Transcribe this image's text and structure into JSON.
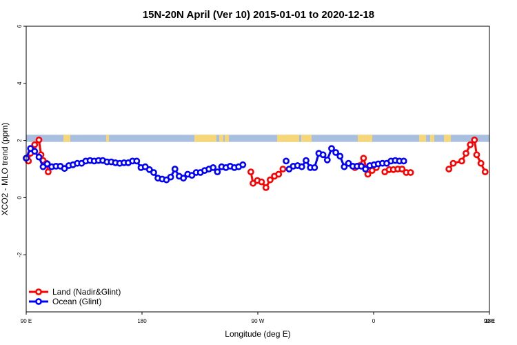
{
  "chart_data": {
    "type": "line",
    "title": "15N-20N April (Ver 10)   2015-01-01 to 2020-12-18",
    "xlabel": "Longitude (deg E)",
    "ylabel": "XCO2 - MLO trend (ppm)",
    "xlim": [
      90,
      450
    ],
    "ylim": [
      -4,
      6
    ],
    "x_ticks": [
      {
        "value": 90,
        "label": "90 E"
      },
      {
        "value": 180,
        "label": "180"
      },
      {
        "value": 270,
        "label": "90 W"
      },
      {
        "value": 360,
        "label": "0"
      },
      {
        "value": 450,
        "label": "90 E"
      },
      {
        "value": 540,
        "label": "180"
      }
    ],
    "y_ticks": [
      {
        "value": -2,
        "label": "-2"
      },
      {
        "value": 0,
        "label": "0"
      },
      {
        "value": 2,
        "label": "2"
      },
      {
        "value": 4,
        "label": "4"
      },
      {
        "value": 6,
        "label": "6"
      }
    ],
    "legend_position": "bottom-left",
    "land_band": {
      "y_range": [
        1.95,
        2.2
      ],
      "ocean_color": "#a8bfe0",
      "land_color": "#f5d77a"
    },
    "series": [
      {
        "name": "Land (Nadir&Glint)",
        "color": "#ff0000",
        "points": [
          [
            [
              90,
              1.38
            ],
            [
              91.7,
              1.28
            ],
            [
              93.3,
              1.55
            ],
            [
              96.6,
              1.85
            ],
            [
              99.9,
              2.02
            ],
            [
              101.5,
              1.5
            ],
            [
              103.1,
              1.3
            ],
            [
              105.8,
              1.2
            ],
            [
              107.1,
              0.9
            ]
          ],
          [
            [
              264.6,
              0.9
            ],
            [
              266.3,
              0.5
            ],
            [
              269.6,
              0.6
            ],
            [
              272.9,
              0.55
            ],
            [
              276.3,
              0.35
            ],
            [
              279.6,
              0.62
            ],
            [
              282.9,
              0.75
            ],
            [
              286.2,
              0.82
            ],
            [
              289.5,
              1.0
            ]
          ],
          [
            [
              345.5,
              1.05
            ],
            [
              349,
              1.12
            ],
            [
              352.2,
              1.38
            ],
            [
              355.5,
              0.82
            ],
            [
              358.8,
              0.95
            ],
            [
              362.1,
              1.05
            ]
          ],
          [
            [
              368.7,
              0.9
            ],
            [
              372.1,
              0.98
            ],
            [
              375.4,
              0.98
            ],
            [
              378.8,
              1.0
            ],
            [
              382.1,
              1.0
            ],
            [
              385.4,
              0.88
            ],
            [
              388.7,
              0.88
            ]
          ],
          [
            [
              418.5,
              1.0
            ],
            [
              421.9,
              1.2
            ],
            [
              428.5,
              1.28
            ],
            [
              431.8,
              1.55
            ],
            [
              435.1,
              1.85
            ],
            [
              438.4,
              2.02
            ],
            [
              440.1,
              1.5
            ],
            [
              443.4,
              1.2
            ],
            [
              446.7,
              0.9
            ]
          ]
        ]
      },
      {
        "name": "Ocean (Glint)",
        "color": "#0000ff",
        "points": [
          [
            [
              90,
              1.38
            ],
            [
              93.3,
              1.72
            ],
            [
              96.6,
              1.62
            ],
            [
              99.9,
              1.42
            ],
            [
              103.1,
              1.08
            ],
            [
              106.4,
              1.18
            ],
            [
              109.8,
              1.08
            ],
            [
              113.2,
              1.1
            ],
            [
              116.5,
              1.1
            ],
            [
              119.8,
              1.02
            ],
            [
              123.1,
              1.12
            ],
            [
              126.4,
              1.15
            ],
            [
              129.7,
              1.2
            ],
            [
              133,
              1.2
            ],
            [
              136.3,
              1.28
            ],
            [
              139.6,
              1.3
            ],
            [
              142.9,
              1.28
            ],
            [
              146.2,
              1.3
            ],
            [
              149.5,
              1.3
            ],
            [
              152.8,
              1.25
            ],
            [
              156.1,
              1.25
            ],
            [
              159.4,
              1.22
            ],
            [
              162.7,
              1.2
            ],
            [
              166,
              1.22
            ],
            [
              169.3,
              1.22
            ],
            [
              172.6,
              1.28
            ],
            [
              175.9,
              1.28
            ],
            [
              179.2,
              1.05
            ],
            [
              182.5,
              1.08
            ],
            [
              185.8,
              0.98
            ],
            [
              189.1,
              0.88
            ],
            [
              192.4,
              0.68
            ],
            [
              195.7,
              0.65
            ],
            [
              199,
              0.62
            ],
            [
              202.3,
              0.72
            ],
            [
              205.6,
              1.0
            ],
            [
              208.9,
              0.75
            ],
            [
              212.2,
              0.68
            ],
            [
              215.5,
              0.82
            ],
            [
              218.8,
              0.78
            ],
            [
              222.1,
              0.88
            ],
            [
              225.4,
              0.88
            ],
            [
              228.7,
              0.95
            ],
            [
              232,
              1.0
            ],
            [
              235.3,
              1.05
            ],
            [
              238.6,
              0.9
            ],
            [
              241.9,
              1.08
            ],
            [
              245.2,
              1.05
            ],
            [
              248.5,
              1.1
            ],
            [
              251.8,
              1.05
            ],
            [
              255.1,
              1.08
            ],
            [
              258.4,
              1.15
            ]
          ],
          [
            [
              292,
              1.28
            ]
          ],
          [
            [
              294.3,
              1.0
            ],
            [
              297.6,
              1.1
            ],
            [
              300.9,
              1.12
            ],
            [
              304.2,
              1.08
            ],
            [
              307.5,
              1.3
            ],
            [
              310.8,
              1.05
            ],
            [
              314.1,
              1.05
            ],
            [
              317.4,
              1.55
            ],
            [
              320.7,
              1.5
            ],
            [
              324,
              1.32
            ],
            [
              327.3,
              1.72
            ],
            [
              330.6,
              1.58
            ],
            [
              333.9,
              1.45
            ],
            [
              337.2,
              1.08
            ],
            [
              340.5,
              1.2
            ],
            [
              343.8,
              1.1
            ],
            [
              347.1,
              1.1
            ],
            [
              350.4,
              1.1
            ],
            [
              353.7,
              1.0
            ],
            [
              357,
              1.12
            ],
            [
              360.3,
              1.15
            ],
            [
              363.6,
              1.18
            ],
            [
              366.9,
              1.2
            ],
            [
              370.2,
              1.2
            ],
            [
              373.5,
              1.28
            ],
            [
              376.8,
              1.3
            ],
            [
              380.1,
              1.28
            ],
            [
              383.4,
              1.28
            ]
          ]
        ]
      }
    ]
  }
}
